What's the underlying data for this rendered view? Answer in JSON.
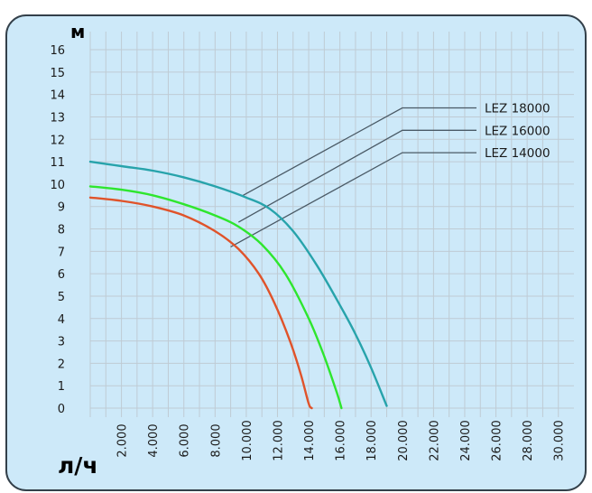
{
  "chart_data": {
    "type": "line",
    "title": "",
    "ylabel": "м",
    "xlabel": "л/ч",
    "ylim": [
      0,
      16
    ],
    "xlim": [
      0,
      31000
    ],
    "y_ticks": [
      "0",
      "1",
      "2",
      "3",
      "4",
      "5",
      "6",
      "7",
      "8",
      "9",
      "10",
      "11",
      "12",
      "13",
      "14",
      "15",
      "16"
    ],
    "x_ticks": [
      {
        "value": 2000,
        "label": "2.000"
      },
      {
        "value": 4000,
        "label": "4.000"
      },
      {
        "value": 6000,
        "label": "6.000"
      },
      {
        "value": 8000,
        "label": "8.000"
      },
      {
        "value": 10000,
        "label": "10.000"
      },
      {
        "value": 12000,
        "label": "12.000"
      },
      {
        "value": 14000,
        "label": "14.000"
      },
      {
        "value": 16000,
        "label": "16.000"
      },
      {
        "value": 18000,
        "label": "18.000"
      },
      {
        "value": 20000,
        "label": "20.000"
      },
      {
        "value": 22000,
        "label": "22.000"
      },
      {
        "value": 24000,
        "label": "24.000"
      },
      {
        "value": 26000,
        "label": "26.000"
      },
      {
        "value": 28000,
        "label": "28.000"
      },
      {
        "value": 30000,
        "label": "30.000"
      }
    ],
    "grid": true,
    "series": [
      {
        "name": "LEZ 18000",
        "color": "#27a3ab",
        "points": [
          [
            0,
            11.0
          ],
          [
            2000,
            10.8
          ],
          [
            4000,
            10.6
          ],
          [
            6000,
            10.3
          ],
          [
            8000,
            9.9
          ],
          [
            10000,
            9.4
          ],
          [
            11500,
            8.9
          ],
          [
            13000,
            7.9
          ],
          [
            14500,
            6.4
          ],
          [
            16000,
            4.6
          ],
          [
            17000,
            3.3
          ],
          [
            18000,
            1.8
          ],
          [
            19000,
            0.1
          ]
        ],
        "leader_from": [
          9800,
          9.5
        ],
        "leader_elbow": [
          20000,
          13.4
        ]
      },
      {
        "name": "LEZ 16000",
        "color": "#2ee62e",
        "points": [
          [
            0,
            9.9
          ],
          [
            2000,
            9.75
          ],
          [
            4000,
            9.5
          ],
          [
            6000,
            9.1
          ],
          [
            8000,
            8.6
          ],
          [
            9500,
            8.1
          ],
          [
            11000,
            7.3
          ],
          [
            12500,
            6.0
          ],
          [
            14000,
            4.0
          ],
          [
            15000,
            2.3
          ],
          [
            15800,
            0.7
          ],
          [
            16100,
            0.0
          ]
        ],
        "leader_from": [
          9500,
          8.3
        ],
        "leader_elbow": [
          20000,
          12.4
        ]
      },
      {
        "name": "LEZ 14000",
        "color": "#e0532a",
        "points": [
          [
            0,
            9.4
          ],
          [
            2000,
            9.25
          ],
          [
            4000,
            9.0
          ],
          [
            6000,
            8.6
          ],
          [
            8000,
            7.9
          ],
          [
            9500,
            7.1
          ],
          [
            10800,
            6.0
          ],
          [
            11800,
            4.7
          ],
          [
            12800,
            3.0
          ],
          [
            13500,
            1.5
          ],
          [
            14000,
            0.2
          ],
          [
            14200,
            0.0
          ]
        ],
        "leader_from": [
          9000,
          7.2
        ],
        "leader_elbow": [
          20000,
          11.4
        ]
      }
    ],
    "legend_placement": "right, labels with leader lines",
    "colors": {
      "plot_background": "#cde9f9",
      "frame": "#33404a",
      "grid": "#bfcbd4",
      "leader": "#4a5a66"
    }
  }
}
